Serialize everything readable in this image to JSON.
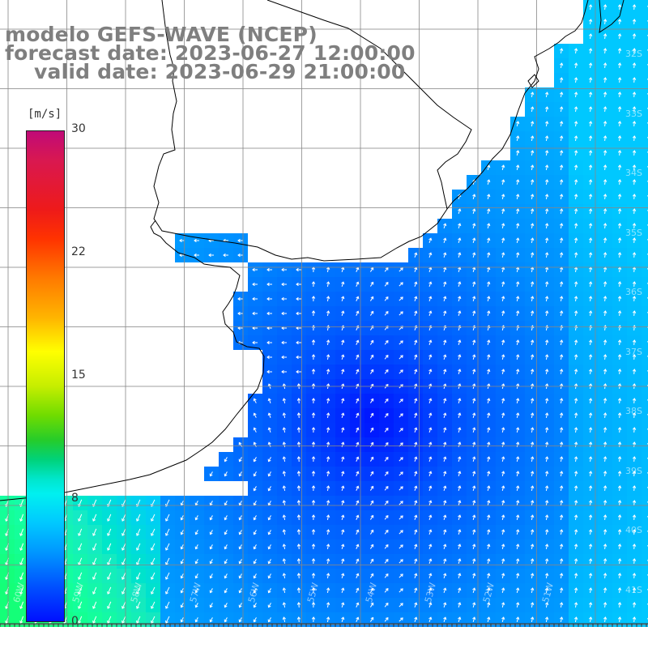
{
  "header": {
    "model": "modelo GEFS-WAVE (NCEP)",
    "forecast_date": "forecast date: 2023-06-27 12:00:00",
    "valid_date": "valid date: 2023-06-29 21:00:00"
  },
  "colorbar": {
    "unit": "[m/s]",
    "ticks": [
      "30",
      "22",
      "15",
      "8",
      "0"
    ],
    "tick_values": [
      30,
      22,
      15,
      8,
      0
    ],
    "range": [
      0,
      30
    ]
  },
  "map": {
    "longitude_labels": [
      "60W",
      "59W",
      "58W",
      "57W",
      "56W",
      "55W",
      "54W",
      "53W",
      "52W",
      "51W"
    ],
    "latitude_labels": [
      "32S",
      "33S",
      "34S",
      "35S",
      "36S",
      "37S",
      "38S",
      "39S",
      "40S",
      "41S"
    ],
    "colors": {
      "land": "#ffffff",
      "coastline": "#000000",
      "grid": "#888888",
      "arrows": "#ffffff"
    }
  }
}
